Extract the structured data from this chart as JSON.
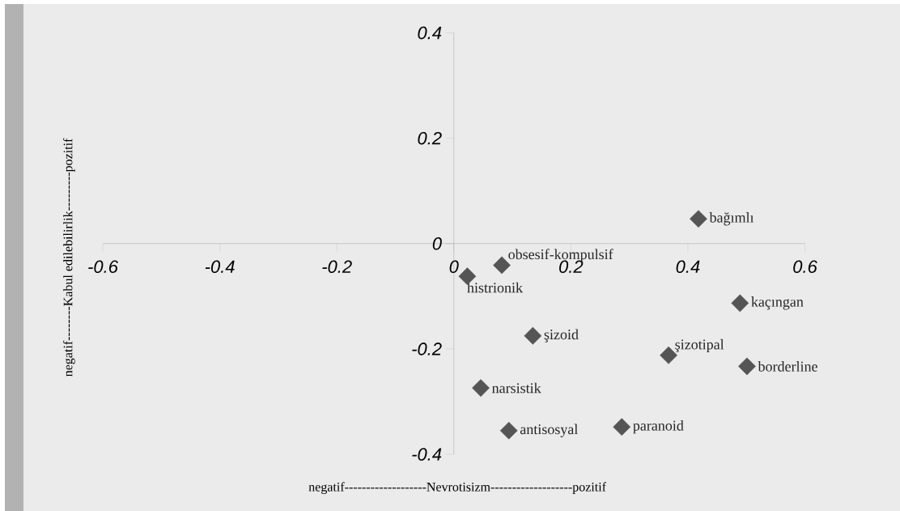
{
  "chart_data": {
    "type": "scatter",
    "xlabel": "negatif-------------------Nevrotisizm-------------------pozitif",
    "ylabel": "negatif--------Kabul edilebilirlik---------pozitif",
    "x": [
      0.418,
      0.082,
      0.023,
      0.489,
      0.135,
      0.367,
      0.501,
      0.046,
      0.094,
      0.287
    ],
    "values": [
      0.047,
      -0.041,
      -0.062,
      -0.113,
      -0.175,
      -0.212,
      -0.233,
      -0.274,
      -0.355,
      -0.348
    ],
    "color": "#555555",
    "marker": "diamond",
    "grid": false,
    "xlim": [
      -0.6,
      0.6
    ],
    "ylim": [
      -0.4,
      0.4
    ],
    "xticks": [
      -0.6,
      -0.4,
      -0.2,
      0,
      0.2,
      0.4,
      0.6
    ],
    "yticks": [
      -0.4,
      -0.2,
      0,
      0.2,
      0.4
    ],
    "annotations": [
      {
        "text": "bağımlı",
        "x": 0.418,
        "y": 0.047
      },
      {
        "text": "obsesif-kompulsif",
        "x": 0.082,
        "y": -0.041
      },
      {
        "text": "histrionik",
        "x": 0.023,
        "y": -0.062
      },
      {
        "text": "kaçıngan",
        "x": 0.489,
        "y": -0.113
      },
      {
        "text": "şizoid",
        "x": 0.135,
        "y": -0.175
      },
      {
        "text": "şizotipal",
        "x": 0.367,
        "y": -0.212
      },
      {
        "text": "borderline",
        "x": 0.501,
        "y": -0.233
      },
      {
        "text": "narsistik",
        "x": 0.046,
        "y": -0.274
      },
      {
        "text": "antisosyal",
        "x": 0.094,
        "y": -0.355
      },
      {
        "text": "paranoid",
        "x": 0.287,
        "y": -0.348
      }
    ]
  }
}
